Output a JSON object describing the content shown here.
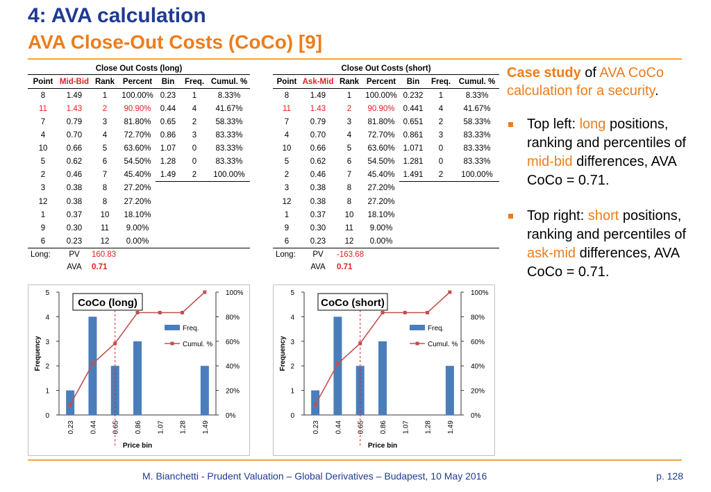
{
  "header": {
    "title": "4: AVA calculation",
    "subtitle": "AVA Close-Out Costs (CoCo) [9]"
  },
  "colors": {
    "accent_orange": "#ee7c1a",
    "title_blue": "#1f3a93",
    "bar_blue": "#4a7ebb",
    "line_red": "#c0504d"
  },
  "tables": {
    "long": {
      "title": "Close Out Costs (long)",
      "headers": [
        "Point",
        "Mid-Bid",
        "Rank",
        "Percent",
        "Bin",
        "Freq.",
        "Cumul. %"
      ],
      "rows": [
        [
          "8",
          "1.49",
          "1",
          "100.00%",
          "0.23",
          "1",
          "8.33%"
        ],
        [
          "11",
          "1.43",
          "2",
          "90.90%",
          "0.44",
          "4",
          "41.67%"
        ],
        [
          "7",
          "0.79",
          "3",
          "81.80%",
          "0.65",
          "2",
          "58.33%"
        ],
        [
          "4",
          "0.70",
          "4",
          "72.70%",
          "0.86",
          "3",
          "83.33%"
        ],
        [
          "10",
          "0.66",
          "5",
          "63.60%",
          "1.07",
          "0",
          "83.33%"
        ],
        [
          "5",
          "0.62",
          "6",
          "54.50%",
          "1.28",
          "0",
          "83.33%"
        ],
        [
          "2",
          "0.46",
          "7",
          "45.40%",
          "1.49",
          "2",
          "100.00%"
        ],
        [
          "3",
          "0.38",
          "8",
          "27.20%",
          "",
          "",
          ""
        ],
        [
          "12",
          "0.38",
          "8",
          "27.20%",
          "",
          "",
          ""
        ],
        [
          "1",
          "0.37",
          "10",
          "18.10%",
          "",
          "",
          ""
        ],
        [
          "9",
          "0.30",
          "11",
          "9.00%",
          "",
          "",
          ""
        ],
        [
          "6",
          "0.23",
          "12",
          "0.00%",
          "",
          "",
          ""
        ]
      ],
      "summary_label": "Long:",
      "pv_label": "PV",
      "pv_value": "160.83",
      "ava_label": "AVA",
      "ava_value": "0.71"
    },
    "short": {
      "title": "Close Out Costs (short)",
      "headers": [
        "Point",
        "Ask-Mid",
        "Rank",
        "Percent",
        "Bin",
        "Freq.",
        "Cumul. %"
      ],
      "rows": [
        [
          "8",
          "1.49",
          "1",
          "100.00%",
          "0.232",
          "1",
          "8.33%"
        ],
        [
          "11",
          "1.43",
          "2",
          "90.90%",
          "0.441",
          "4",
          "41.67%"
        ],
        [
          "7",
          "0.79",
          "3",
          "81.80%",
          "0.651",
          "2",
          "58.33%"
        ],
        [
          "4",
          "0.70",
          "4",
          "72.70%",
          "0.861",
          "3",
          "83.33%"
        ],
        [
          "10",
          "0.66",
          "5",
          "63.60%",
          "1.071",
          "0",
          "83.33%"
        ],
        [
          "5",
          "0.62",
          "6",
          "54.50%",
          "1.281",
          "0",
          "83.33%"
        ],
        [
          "2",
          "0.46",
          "7",
          "45.40%",
          "1.491",
          "2",
          "100.00%"
        ],
        [
          "3",
          "0.38",
          "8",
          "27.20%",
          "",
          "",
          ""
        ],
        [
          "12",
          "0.38",
          "8",
          "27.20%",
          "",
          "",
          ""
        ],
        [
          "1",
          "0.37",
          "10",
          "18.10%",
          "",
          "",
          ""
        ],
        [
          "9",
          "0.30",
          "11",
          "9.00%",
          "",
          "",
          ""
        ],
        [
          "6",
          "0.23",
          "12",
          "0.00%",
          "",
          "",
          ""
        ]
      ],
      "summary_label": "Long:",
      "pv_label": "PV",
      "pv_value": "-163.68",
      "ava_label": "AVA",
      "ava_value": "0.71"
    }
  },
  "chart_data": [
    {
      "type": "bar",
      "title": "CoCo (long)",
      "categories": [
        "0.23",
        "0.44",
        "0.65",
        "0.86",
        "1.07",
        "1.28",
        "1.49"
      ],
      "series": [
        {
          "name": "Freq.",
          "type": "bar",
          "axis": "left",
          "values": [
            1,
            4,
            2,
            3,
            0,
            0,
            2
          ]
        },
        {
          "name": "Cumul. %",
          "type": "line",
          "axis": "right",
          "values": [
            8.33,
            41.67,
            58.33,
            83.33,
            83.33,
            83.33,
            100
          ]
        }
      ],
      "xlabel": "Price bin",
      "ylabel": "Frequency",
      "ylim": [
        0,
        5
      ],
      "y_ticks": [
        "0",
        "1",
        "2",
        "3",
        "4",
        "5"
      ],
      "y2lim": [
        0,
        100
      ],
      "y2_ticks": [
        "0%",
        "20%",
        "40%",
        "60%",
        "80%",
        "100%"
      ],
      "marker_x": 0.65,
      "legend": "right"
    },
    {
      "type": "bar",
      "title": "CoCo (short)",
      "categories": [
        "0.23",
        "0.44",
        "0.65",
        "0.86",
        "1.07",
        "1.28",
        "1.49"
      ],
      "series": [
        {
          "name": "Freq.",
          "type": "bar",
          "axis": "left",
          "values": [
            1,
            4,
            2,
            3,
            0,
            0,
            2
          ]
        },
        {
          "name": "Cumul. %",
          "type": "line",
          "axis": "right",
          "values": [
            8.33,
            41.67,
            58.33,
            83.33,
            83.33,
            83.33,
            100
          ]
        }
      ],
      "xlabel": "Price bin",
      "ylabel": "Frequency",
      "ylim": [
        0,
        5
      ],
      "y_ticks": [
        "0",
        "1",
        "2",
        "3",
        "4",
        "5"
      ],
      "y2lim": [
        0,
        100
      ],
      "y2_ticks": [
        "0%",
        "20%",
        "40%",
        "60%",
        "80%",
        "100%"
      ],
      "marker_x": 0.65,
      "legend": "right"
    }
  ],
  "sidebar": {
    "intro_bold": "Case study",
    "intro_of": " of ",
    "intro_orange": "AVA CoCo calculation for a security",
    "intro_end": ".",
    "bullet1": {
      "pre": "Top left: ",
      "hl1": "long",
      "mid": " positions, ranking and percentiles of ",
      "hl2": "mid-bid",
      "post": " differences, AVA CoCo = 0.71."
    },
    "bullet2": {
      "pre": "Top right: ",
      "hl1": "short",
      "mid": " positions, ranking and percentiles of ",
      "hl2": "ask-mid",
      "post": " differences, AVA CoCo = 0.71."
    }
  },
  "footer": {
    "text": "M. Bianchetti - Prudent Valuation – Global Derivatives – Budapest, 10 May 2016",
    "page": "p. 128"
  }
}
